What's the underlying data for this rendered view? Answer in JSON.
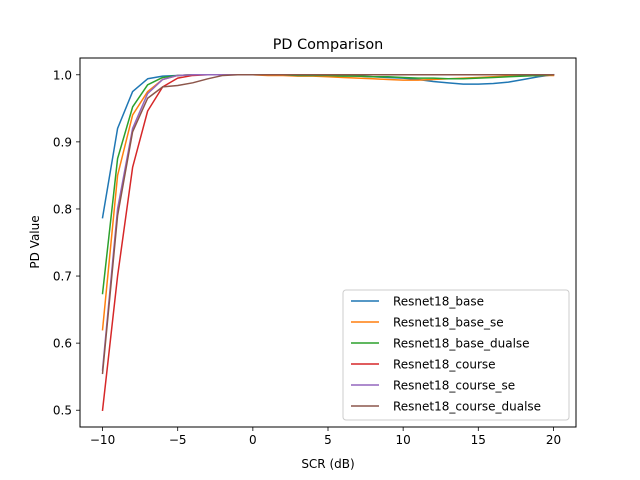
{
  "chart_data": {
    "type": "line",
    "title": "PD Comparison",
    "xlabel": "SCR (dB)",
    "ylabel": "PD Value",
    "xlim": [
      -11.5,
      21.5
    ],
    "ylim": [
      0.475,
      1.025
    ],
    "xticks": [
      -10,
      -5,
      0,
      5,
      10,
      15,
      20
    ],
    "xtick_labels": [
      "−10",
      "−5",
      "0",
      "5",
      "10",
      "15",
      "20"
    ],
    "yticks": [
      0.5,
      0.6,
      0.7,
      0.8,
      0.9,
      1.0
    ],
    "ytick_labels": [
      "0.5",
      "0.6",
      "0.7",
      "0.8",
      "0.9",
      "1.0"
    ],
    "grid": false,
    "legend_position": "lower-right",
    "x": [
      -10,
      -9,
      -8,
      -7,
      -6,
      -5,
      -4,
      -3,
      -2,
      -1,
      0,
      1,
      2,
      3,
      4,
      5,
      6,
      7,
      8,
      9,
      10,
      11,
      12,
      13,
      14,
      15,
      16,
      17,
      18,
      19,
      20
    ],
    "series": [
      {
        "name": "Resnet18_base",
        "color": "#1f77b4",
        "values": [
          0.787,
          0.92,
          0.975,
          0.994,
          0.998,
          0.999,
          1.0,
          1.0,
          1.0,
          1.0,
          1.0,
          1.0,
          1.0,
          1.0,
          1.0,
          0.999,
          0.999,
          0.998,
          0.997,
          0.996,
          0.995,
          0.993,
          0.99,
          0.988,
          0.986,
          0.986,
          0.987,
          0.989,
          0.993,
          0.997,
          1.0
        ]
      },
      {
        "name": "Resnet18_base_se",
        "color": "#ff7f0e",
        "values": [
          0.62,
          0.85,
          0.94,
          0.975,
          0.993,
          0.999,
          1.0,
          1.0,
          1.0,
          1.0,
          1.0,
          0.999,
          0.999,
          0.998,
          0.998,
          0.997,
          0.996,
          0.995,
          0.994,
          0.993,
          0.992,
          0.992,
          0.993,
          0.994,
          0.995,
          0.996,
          0.997,
          0.998,
          0.999,
          0.999,
          0.999
        ]
      },
      {
        "name": "Resnet18_base_dualse",
        "color": "#2ca02c",
        "values": [
          0.674,
          0.875,
          0.952,
          0.985,
          0.996,
          0.999,
          1.0,
          1.0,
          1.0,
          1.0,
          1.0,
          1.0,
          1.0,
          0.999,
          0.999,
          0.999,
          0.998,
          0.998,
          0.997,
          0.997,
          0.996,
          0.995,
          0.995,
          0.994,
          0.994,
          0.995,
          0.996,
          0.997,
          0.998,
          0.999,
          1.0
        ]
      },
      {
        "name": "Resnet18_course",
        "color": "#d62728",
        "values": [
          0.5,
          0.7,
          0.862,
          0.946,
          0.982,
          0.995,
          0.999,
          1.0,
          1.0,
          1.0,
          1.0,
          1.0,
          1.0,
          1.0,
          1.0,
          1.0,
          1.0,
          1.0,
          1.0,
          1.0,
          1.0,
          1.0,
          1.0,
          1.0,
          1.0,
          1.0,
          1.0,
          1.0,
          1.0,
          1.0,
          1.0
        ]
      },
      {
        "name": "Resnet18_course_se",
        "color": "#9467bd",
        "values": [
          0.56,
          0.8,
          0.92,
          0.972,
          0.993,
          0.999,
          1.0,
          1.0,
          1.0,
          1.0,
          1.0,
          1.0,
          1.0,
          1.0,
          1.0,
          1.0,
          1.0,
          1.0,
          1.0,
          1.0,
          1.0,
          1.0,
          1.0,
          1.0,
          1.0,
          1.0,
          1.0,
          1.0,
          1.0,
          1.0,
          1.0
        ]
      },
      {
        "name": "Resnet18_course_dualse",
        "color": "#8c564b",
        "values": [
          0.555,
          0.79,
          0.915,
          0.965,
          0.982,
          0.984,
          0.988,
          0.994,
          0.999,
          1.0,
          1.0,
          1.0,
          1.0,
          1.0,
          1.0,
          1.0,
          1.0,
          1.0,
          1.0,
          1.0,
          1.0,
          1.0,
          1.0,
          1.0,
          1.0,
          1.0,
          1.0,
          1.0,
          1.0,
          1.0,
          1.0
        ]
      }
    ]
  }
}
